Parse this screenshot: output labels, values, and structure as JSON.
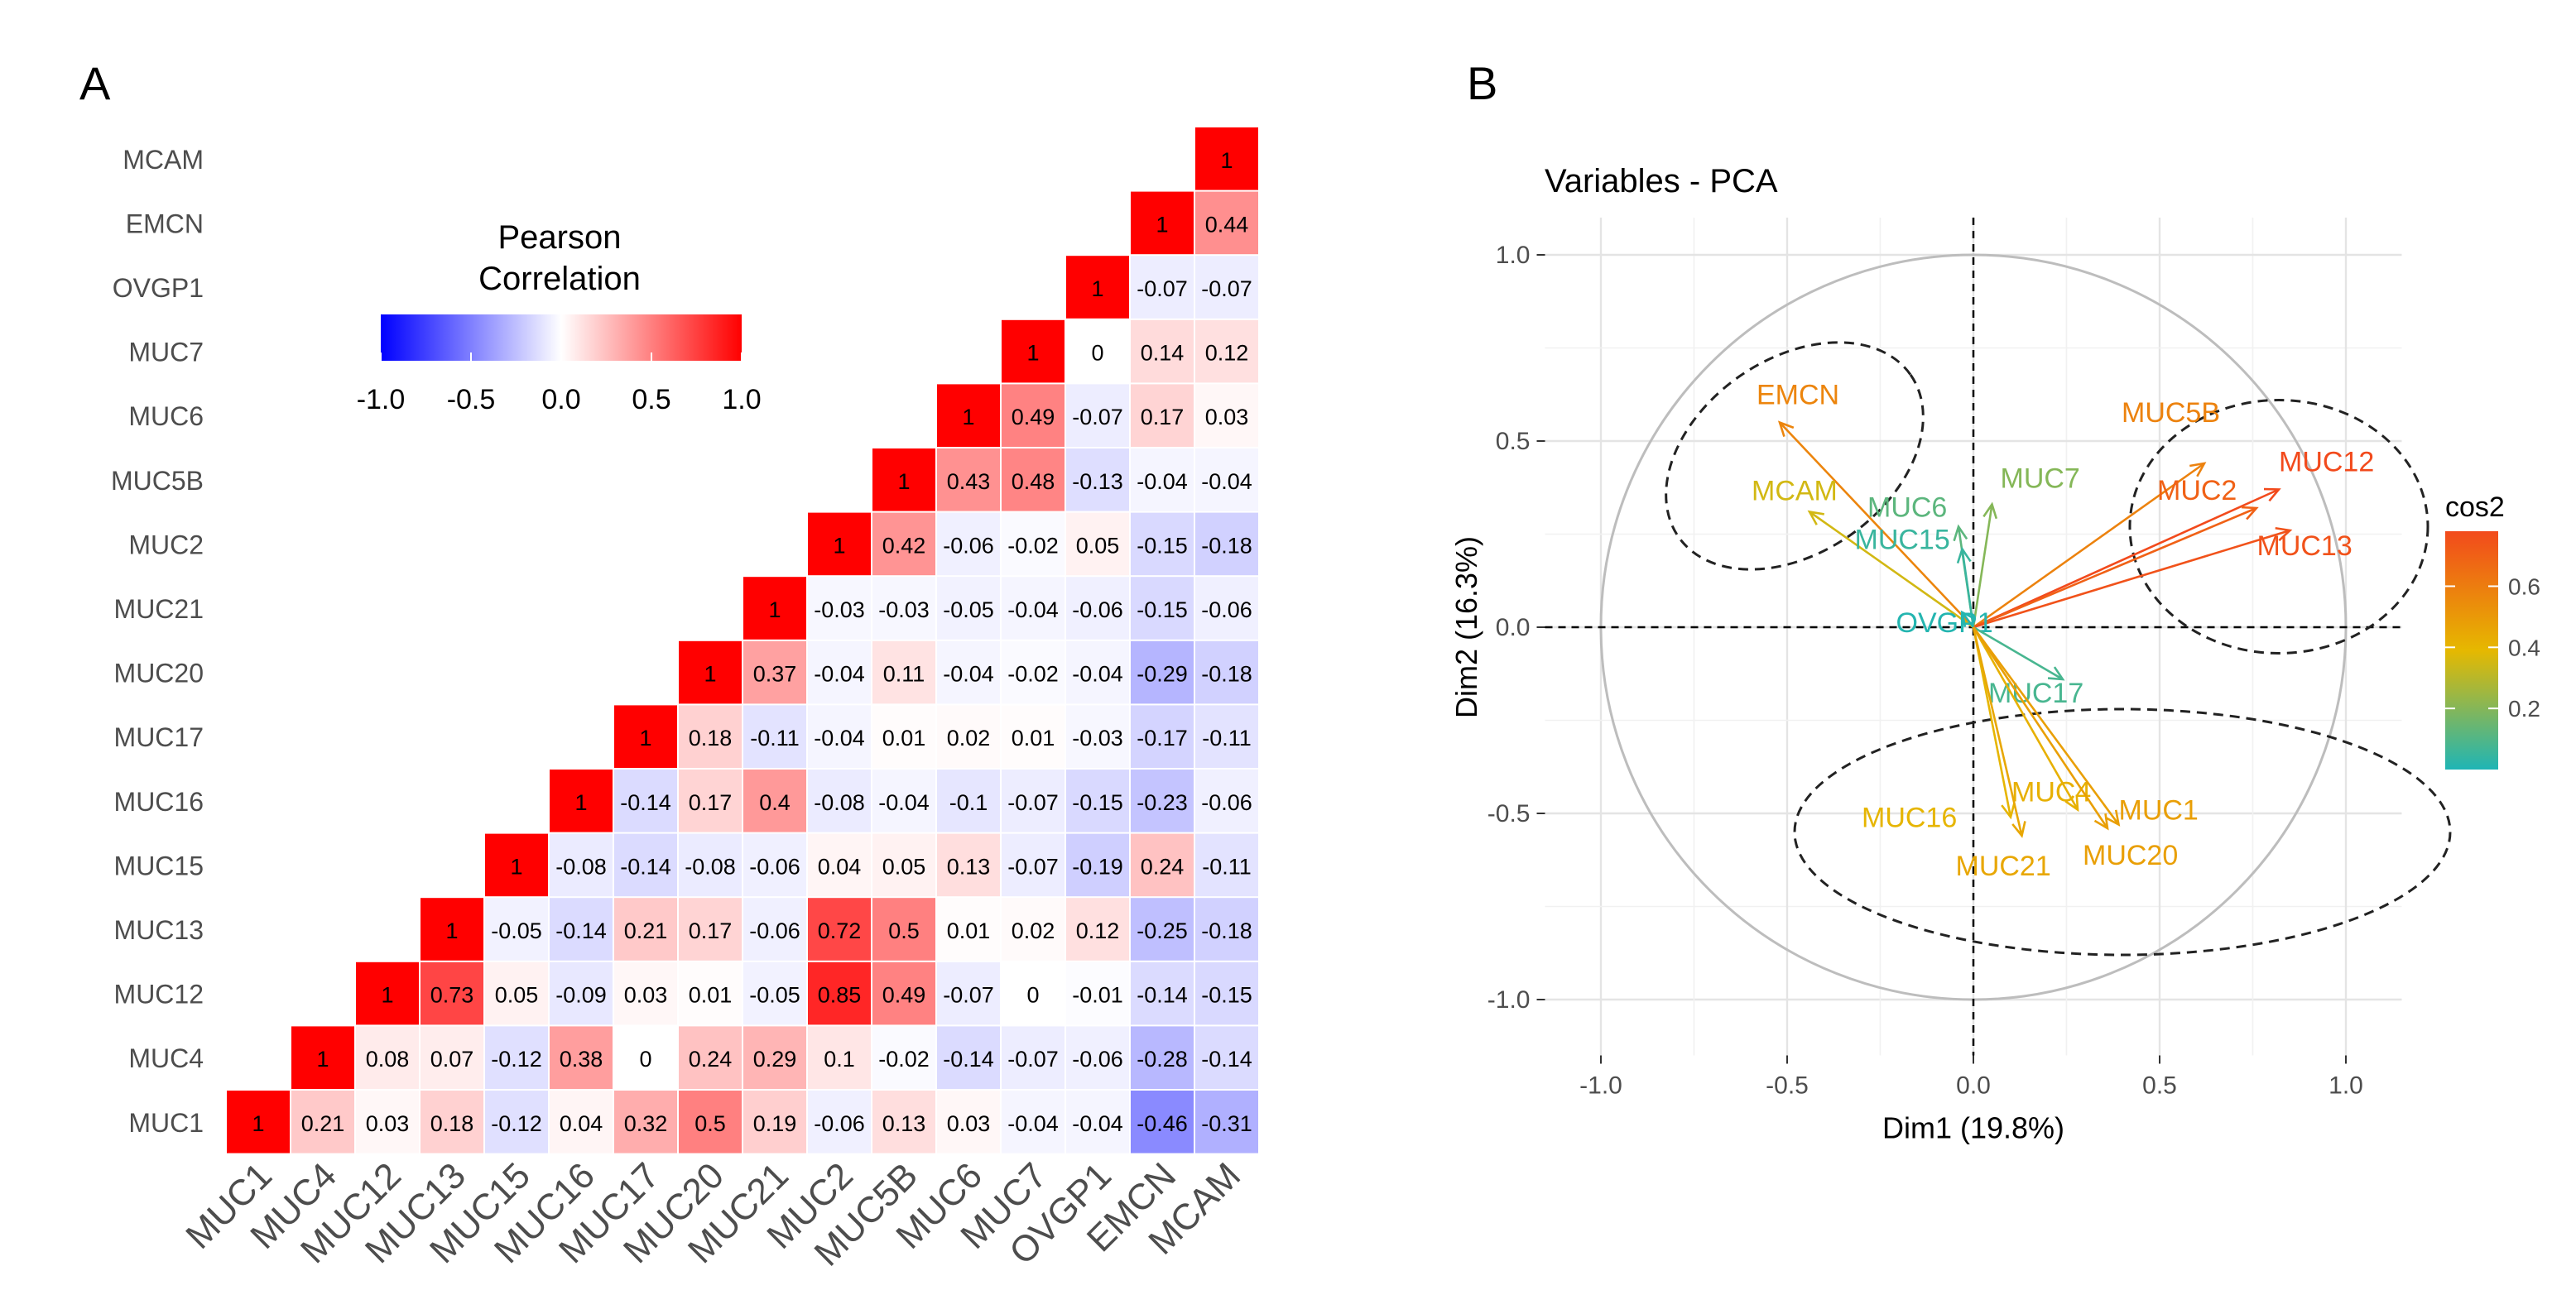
{
  "chart_data": [
    {
      "panel_label": "A",
      "type": "heatmap",
      "title": "",
      "legend": {
        "title_line1": "Pearson",
        "title_line2": "Correlation",
        "ticks": [
          "-1.0",
          "-0.5",
          "0.0",
          "0.5",
          "1.0"
        ],
        "range": [
          -1,
          1
        ]
      },
      "variables": [
        "MUC1",
        "MUC4",
        "MUC12",
        "MUC13",
        "MUC15",
        "MUC16",
        "MUC17",
        "MUC20",
        "MUC21",
        "MUC2",
        "MUC5B",
        "MUC6",
        "MUC7",
        "OVGP1",
        "EMCN",
        "MCAM"
      ],
      "columns": [
        {
          "name": "MUC1",
          "values": [
            1
          ]
        },
        {
          "name": "MUC4",
          "values": [
            0.21,
            1
          ]
        },
        {
          "name": "MUC12",
          "values": [
            0.03,
            0.08,
            1
          ]
        },
        {
          "name": "MUC13",
          "values": [
            0.18,
            0.07,
            0.73,
            1
          ]
        },
        {
          "name": "MUC15",
          "values": [
            -0.12,
            -0.12,
            0.05,
            -0.05,
            1
          ]
        },
        {
          "name": "MUC16",
          "values": [
            0.04,
            0.38,
            -0.09,
            -0.14,
            -0.08,
            1
          ]
        },
        {
          "name": "MUC17",
          "values": [
            0.32,
            0,
            0.03,
            0.21,
            -0.14,
            -0.14,
            1
          ]
        },
        {
          "name": "MUC20",
          "values": [
            0.5,
            0.24,
            0.01,
            0.17,
            -0.08,
            0.17,
            0.18,
            1
          ]
        },
        {
          "name": "MUC21",
          "values": [
            0.19,
            0.29,
            -0.05,
            -0.06,
            -0.06,
            0.4,
            -0.11,
            0.37,
            1
          ]
        },
        {
          "name": "MUC2",
          "values": [
            -0.06,
            0.1,
            0.85,
            0.72,
            0.04,
            -0.08,
            -0.04,
            -0.04,
            -0.03,
            1
          ]
        },
        {
          "name": "MUC5B",
          "values": [
            0.13,
            -0.02,
            0.49,
            0.5,
            0.05,
            -0.04,
            0.01,
            0.11,
            -0.03,
            0.42,
            1
          ]
        },
        {
          "name": "MUC6",
          "values": [
            0.03,
            -0.14,
            -0.07,
            0.01,
            0.13,
            -0.1,
            0.02,
            -0.04,
            -0.05,
            -0.06,
            0.43,
            1
          ]
        },
        {
          "name": "MUC7",
          "values": [
            -0.04,
            -0.07,
            0,
            0.02,
            -0.07,
            -0.07,
            0.01,
            -0.02,
            -0.04,
            -0.02,
            0.48,
            0.49,
            1
          ]
        },
        {
          "name": "OVGP1",
          "values": [
            -0.04,
            -0.06,
            -0.01,
            0.12,
            -0.19,
            -0.15,
            -0.03,
            -0.04,
            -0.06,
            0.05,
            -0.13,
            -0.07,
            0,
            1
          ]
        },
        {
          "name": "EMCN",
          "values": [
            -0.46,
            -0.28,
            -0.14,
            -0.25,
            0.24,
            -0.23,
            -0.17,
            -0.29,
            -0.15,
            -0.15,
            -0.04,
            0.17,
            0.14,
            -0.07,
            1
          ]
        },
        {
          "name": "MCAM",
          "values": [
            -0.31,
            -0.14,
            -0.15,
            -0.18,
            -0.11,
            -0.06,
            -0.11,
            -0.18,
            -0.06,
            -0.18,
            -0.04,
            0.03,
            0.12,
            -0.07,
            0.44,
            1
          ]
        }
      ]
    },
    {
      "panel_label": "B",
      "type": "scatter",
      "title": "Variables - PCA",
      "xlabel": "Dim1 (19.8%)",
      "ylabel": "Dim2 (16.3%)",
      "xlim": [
        -1.15,
        1.15
      ],
      "ylim": [
        -1.15,
        1.1
      ],
      "xticks": [
        "-1.0",
        "-0.5",
        "0.0",
        "0.5",
        "1.0"
      ],
      "yticks": [
        "1.0",
        "0.5",
        "0.0",
        "-0.5",
        "-1.0"
      ],
      "grid": true,
      "legend": {
        "title": "cos2",
        "ticks": [
          "0.6",
          "0.4",
          "0.2"
        ],
        "range": [
          0,
          0.78
        ]
      },
      "colors": {
        "low": "#1fb5b5",
        "mid": "#e6b800",
        "high": "#f24a1c"
      },
      "arrows": [
        {
          "name": "EMCN",
          "x": -0.52,
          "y": 0.55,
          "cos2": 0.57
        },
        {
          "name": "MCAM",
          "x": -0.44,
          "y": 0.31,
          "cos2": 0.35
        },
        {
          "name": "MUC7",
          "x": 0.05,
          "y": 0.33,
          "cos2": 0.2
        },
        {
          "name": "MUC6",
          "x": -0.04,
          "y": 0.27,
          "cos2": 0.12
        },
        {
          "name": "MUC15",
          "x": -0.03,
          "y": 0.21,
          "cos2": 0.05
        },
        {
          "name": "MUC5B",
          "x": 0.62,
          "y": 0.44,
          "cos2": 0.58
        },
        {
          "name": "MUC12",
          "x": 0.82,
          "y": 0.37,
          "cos2": 0.78
        },
        {
          "name": "MUC2",
          "x": 0.76,
          "y": 0.32,
          "cos2": 0.7
        },
        {
          "name": "MUC13",
          "x": 0.85,
          "y": 0.26,
          "cos2": 0.75
        },
        {
          "name": "OVGP1",
          "x": -0.03,
          "y": 0.04,
          "cos2": 0.01
        },
        {
          "name": "MUC17",
          "x": 0.24,
          "y": -0.14,
          "cos2": 0.08
        },
        {
          "name": "MUC16",
          "x": 0.1,
          "y": -0.51,
          "cos2": 0.4
        },
        {
          "name": "MUC4",
          "x": 0.28,
          "y": -0.49,
          "cos2": 0.42
        },
        {
          "name": "MUC1",
          "x": 0.39,
          "y": -0.53,
          "cos2": 0.48
        },
        {
          "name": "MUC21",
          "x": 0.13,
          "y": -0.56,
          "cos2": 0.45
        },
        {
          "name": "MUC20",
          "x": 0.36,
          "y": -0.54,
          "cos2": 0.48
        }
      ],
      "ellipses": [
        {
          "cx": -0.48,
          "cy": 0.46,
          "rx": 0.38,
          "ry": 0.26,
          "angle": 35
        },
        {
          "cx": 0.82,
          "cy": 0.27,
          "rx": 0.4,
          "ry": 0.34,
          "angle": 0
        },
        {
          "cx": 0.4,
          "cy": -0.55,
          "rx": 0.88,
          "ry": 0.33,
          "angle": 0
        }
      ]
    }
  ]
}
